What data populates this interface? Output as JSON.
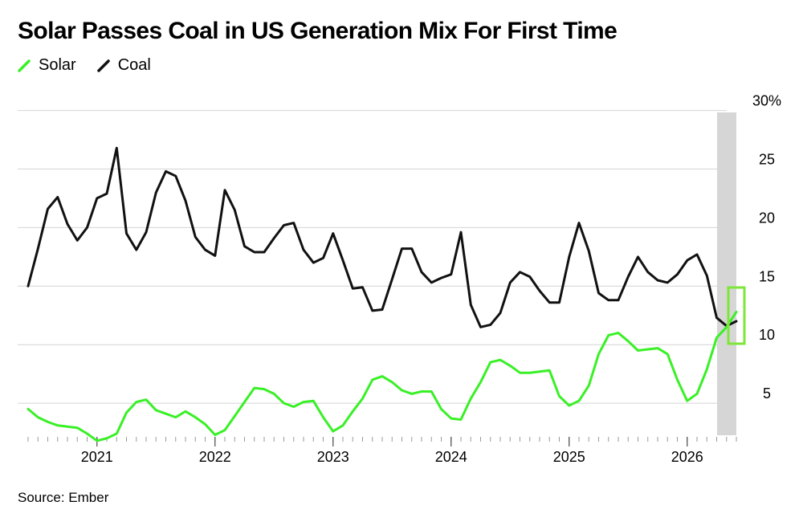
{
  "chart_data": {
    "type": "line",
    "title": "Solar Passes Coal in US Generation Mix For First Time",
    "source": "Source: Ember",
    "x_start": "2020-06",
    "x_ticks": [
      "2021",
      "2022",
      "2023",
      "2024",
      "2025",
      "2026"
    ],
    "y_ticks": [
      "5",
      "10",
      "15",
      "20",
      "25",
      "30%"
    ],
    "ylim": [
      0,
      30
    ],
    "y_axis_side": "right",
    "grid": "horizontal",
    "legend_position": "top-left",
    "highlight": "crossover (2026, ~12%)",
    "series": [
      {
        "name": "Solar",
        "color": "#39f026",
        "values": [
          4.5,
          3.8,
          3.4,
          3.1,
          3.0,
          2.9,
          2.4,
          1.8,
          2.0,
          2.4,
          4.2,
          5.1,
          5.3,
          4.4,
          4.1,
          3.8,
          4.3,
          3.8,
          3.2,
          2.3,
          2.7,
          3.9,
          5.1,
          6.3,
          6.2,
          5.8,
          5.0,
          4.7,
          5.1,
          5.2,
          3.8,
          2.6,
          3.1,
          4.3,
          5.4,
          7.0,
          7.3,
          6.8,
          6.1,
          5.8,
          6.0,
          6.0,
          4.5,
          3.7,
          3.6,
          5.4,
          6.8,
          8.5,
          8.7,
          8.2,
          7.6,
          7.6,
          7.7,
          7.8,
          5.6,
          4.8,
          5.2,
          6.5,
          9.2,
          10.8,
          11.0,
          10.3,
          9.5,
          9.6,
          9.7,
          9.2,
          7.0,
          5.2,
          5.8,
          7.9,
          10.6,
          11.5,
          12.8
        ]
      },
      {
        "name": "Coal",
        "color": "#111111",
        "values": [
          15.0,
          18.2,
          21.6,
          22.6,
          20.3,
          18.9,
          20.0,
          22.5,
          22.9,
          26.8,
          19.5,
          18.1,
          19.6,
          23.0,
          24.8,
          24.4,
          22.3,
          19.2,
          18.1,
          17.6,
          23.2,
          21.5,
          18.4,
          17.9,
          17.9,
          19.1,
          20.2,
          20.4,
          18.1,
          17.0,
          17.4,
          19.5,
          17.2,
          14.8,
          14.9,
          12.9,
          13.0,
          15.6,
          18.2,
          18.2,
          16.2,
          15.3,
          15.7,
          16.0,
          19.6,
          13.4,
          11.5,
          11.7,
          12.7,
          15.3,
          16.2,
          15.8,
          14.6,
          13.6,
          13.6,
          17.5,
          20.4,
          18.0,
          14.4,
          13.8,
          13.8,
          15.8,
          17.5,
          16.2,
          15.5,
          15.3,
          16.0,
          17.2,
          17.7,
          15.9,
          12.3,
          11.6,
          12.0
        ]
      }
    ]
  }
}
